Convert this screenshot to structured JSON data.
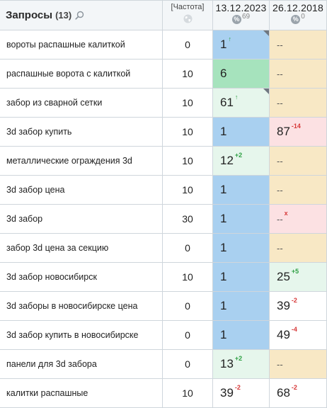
{
  "header": {
    "queries_title": "Запросы",
    "queries_count": "(13)",
    "frequency_label": "[Частота]",
    "dates": [
      {
        "date": "13.12.2023",
        "count": "69"
      },
      {
        "date": "26.12.2018",
        "count": "0"
      }
    ]
  },
  "colors": {
    "blue": "#a9d0f0",
    "green": "#a6e3bd",
    "lightgreen": "#e6f6ec",
    "yellow": "#f8e8c5",
    "pink": "#fce1e3",
    "up": "#2ea043",
    "down": "#d73a3a"
  },
  "rows": [
    {
      "query": "вороты распашные калиткой",
      "freq": "0",
      "p1": {
        "value": "1",
        "change": "↑",
        "dir": "up",
        "color": "blue",
        "corner": true
      },
      "p2": {
        "value": "--",
        "change": "",
        "dir": "",
        "color": "yellow"
      }
    },
    {
      "query": "распашные ворота с калиткой",
      "freq": "10",
      "p1": {
        "value": "6",
        "change": "",
        "dir": "",
        "color": "green"
      },
      "p2": {
        "value": "--",
        "change": "",
        "dir": "",
        "color": "yellow"
      }
    },
    {
      "query": "забор из сварной сетки",
      "freq": "10",
      "p1": {
        "value": "61",
        "change": "↑",
        "dir": "up",
        "color": "lightgreen",
        "corner": true
      },
      "p2": {
        "value": "--",
        "change": "",
        "dir": "",
        "color": "yellow"
      }
    },
    {
      "query": "3d забор купить",
      "freq": "10",
      "p1": {
        "value": "1",
        "change": "",
        "dir": "",
        "color": "blue"
      },
      "p2": {
        "value": "87",
        "change": "-14",
        "dir": "down",
        "color": "pink"
      }
    },
    {
      "query": "металлические ограждения 3d",
      "freq": "10",
      "p1": {
        "value": "12",
        "change": "+2",
        "dir": "up",
        "color": "lightgreen"
      },
      "p2": {
        "value": "--",
        "change": "",
        "dir": "",
        "color": "yellow"
      }
    },
    {
      "query": "3d забор цена",
      "freq": "10",
      "p1": {
        "value": "1",
        "change": "",
        "dir": "",
        "color": "blue"
      },
      "p2": {
        "value": "--",
        "change": "",
        "dir": "",
        "color": "yellow"
      }
    },
    {
      "query": "3d забор",
      "freq": "30",
      "p1": {
        "value": "1",
        "change": "",
        "dir": "",
        "color": "blue"
      },
      "p2": {
        "value": "--",
        "change": "x",
        "dir": "down",
        "color": "pink"
      }
    },
    {
      "query": "забор 3d цена за секцию",
      "freq": "0",
      "p1": {
        "value": "1",
        "change": "",
        "dir": "",
        "color": "blue"
      },
      "p2": {
        "value": "--",
        "change": "",
        "dir": "",
        "color": "yellow"
      }
    },
    {
      "query": "3d забор новосибирск",
      "freq": "10",
      "p1": {
        "value": "1",
        "change": "",
        "dir": "",
        "color": "blue"
      },
      "p2": {
        "value": "25",
        "change": "+5",
        "dir": "up",
        "color": "lightgreen"
      }
    },
    {
      "query": "3d заборы в новосибирске цена",
      "freq": "0",
      "p1": {
        "value": "1",
        "change": "",
        "dir": "",
        "color": "blue"
      },
      "p2": {
        "value": "39",
        "change": "-2",
        "dir": "down",
        "color": "white"
      }
    },
    {
      "query": "3d забор купить в новосибирске",
      "freq": "0",
      "p1": {
        "value": "1",
        "change": "",
        "dir": "",
        "color": "blue"
      },
      "p2": {
        "value": "49",
        "change": "-4",
        "dir": "down",
        "color": "white"
      }
    },
    {
      "query": "панели для 3d забора",
      "freq": "0",
      "p1": {
        "value": "13",
        "change": "+2",
        "dir": "up",
        "color": "lightgreen"
      },
      "p2": {
        "value": "--",
        "change": "",
        "dir": "",
        "color": "yellow"
      }
    },
    {
      "query": "калитки распашные",
      "freq": "10",
      "p1": {
        "value": "39",
        "change": "-2",
        "dir": "down",
        "color": "white"
      },
      "p2": {
        "value": "68",
        "change": "-2",
        "dir": "down",
        "color": "white"
      }
    }
  ]
}
